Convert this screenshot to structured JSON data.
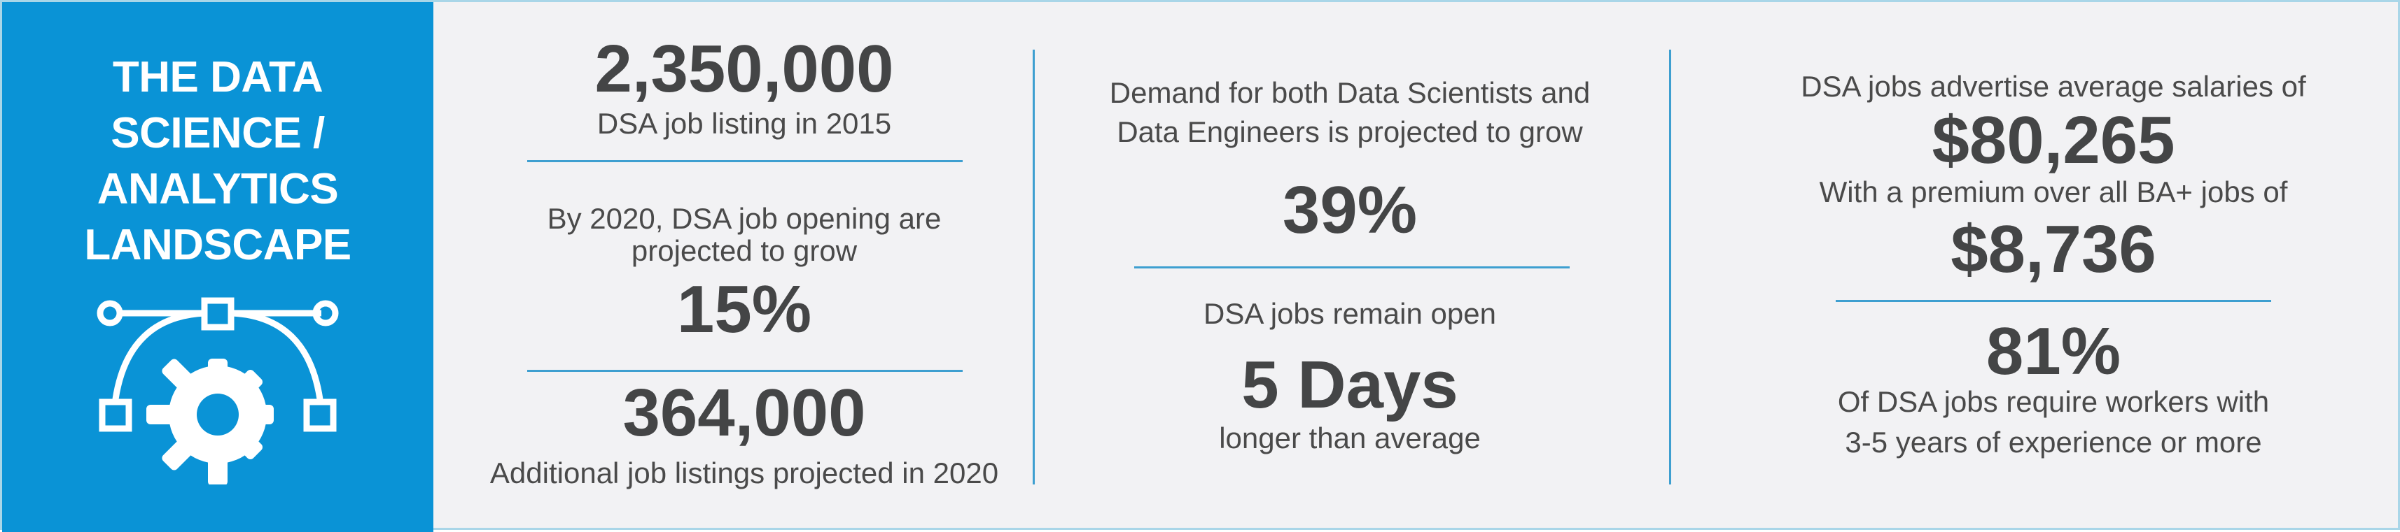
{
  "panel": {
    "title_lines": [
      "THE DATA",
      "SCIENCE /",
      "ANALYTICS",
      "LANDSCAPE"
    ],
    "icon": "bezier-gear-icon",
    "colors": {
      "background": "#0a93d6",
      "text": "#ffffff"
    }
  },
  "col1": {
    "stat1_value": "2,350,000",
    "stat1_label": "DSA job listing in 2015",
    "stat2_line1": "By 2020, DSA job opening are",
    "stat2_line2": "projected to grow",
    "stat2_value": "15%",
    "stat3_value": "364,000",
    "stat3_label": "Additional job listings projected in 2020"
  },
  "col2": {
    "text_line1": "Demand for both Data Scientists and",
    "text_line2": "Data Engineers is projected to grow",
    "stat1_value": "39%",
    "text2": "DSA jobs remain open",
    "stat2_value": "5 Days",
    "text3": "longer than average"
  },
  "col3": {
    "text1": "DSA  jobs advertise average salaries of",
    "stat1_value": "$80,265",
    "text2": "With a premium over all BA+ jobs of",
    "stat2_value": "$8,736",
    "stat3_value": "81%",
    "text3_line1": "Of DSA jobs require workers with",
    "text3_line2": "3-5 years of experience or more"
  },
  "colors": {
    "accent": "#0a93d6",
    "divider": "#3e9fd0",
    "background": "#f2f2f4",
    "text": "#4a4a4a"
  }
}
